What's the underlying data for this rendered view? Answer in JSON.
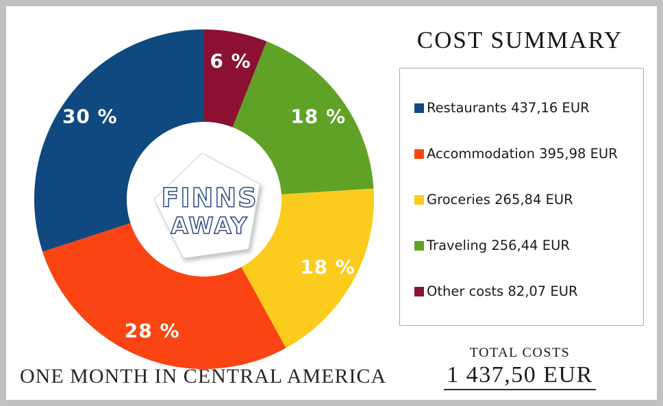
{
  "logo": {
    "line1": "FINNS",
    "line2": "AWAY"
  },
  "chart_data": {
    "type": "pie",
    "style": "donut",
    "title": "COST SUMMARY",
    "footer_caption": "ONE MONTH IN CENTRAL AMERICA",
    "legend_position": "right",
    "start_angle": "12-oclock",
    "direction_from_start": "counter-clockwise by legend order (clockwise draw order is reversed series)",
    "series": [
      {
        "name": "Restaurants",
        "value": 437.16,
        "display_value": "437,16 EUR",
        "percent": 30,
        "percent_label": "30 %",
        "legend_label": "Restaurants 437,16 EUR",
        "color": "#10497f"
      },
      {
        "name": "Accommodation",
        "value": 395.98,
        "display_value": "395,98 EUR",
        "percent": 28,
        "percent_label": "28 %",
        "legend_label": "Accommodation 395,98 EUR",
        "color": "#fa4414"
      },
      {
        "name": "Groceries",
        "value": 265.84,
        "display_value": "265,84 EUR",
        "percent": 18,
        "percent_label": "18 %",
        "legend_label": "Groceries 265,84 EUR",
        "color": "#fbcc1e"
      },
      {
        "name": "Traveling",
        "value": 256.44,
        "display_value": "256,44 EUR",
        "percent": 18,
        "percent_label": "18 %",
        "legend_label": "Traveling 256,44 EUR",
        "color": "#5fa226"
      },
      {
        "name": "Other costs",
        "value": 82.07,
        "display_value": "82,07 EUR",
        "percent": 6,
        "percent_label": "6 %",
        "legend_label": "Other costs 82,07 EUR",
        "color": "#8c1031"
      }
    ],
    "total": {
      "label": "TOTAL COSTS",
      "value": 1437.5,
      "display_value": "1 437,50 EUR"
    }
  }
}
